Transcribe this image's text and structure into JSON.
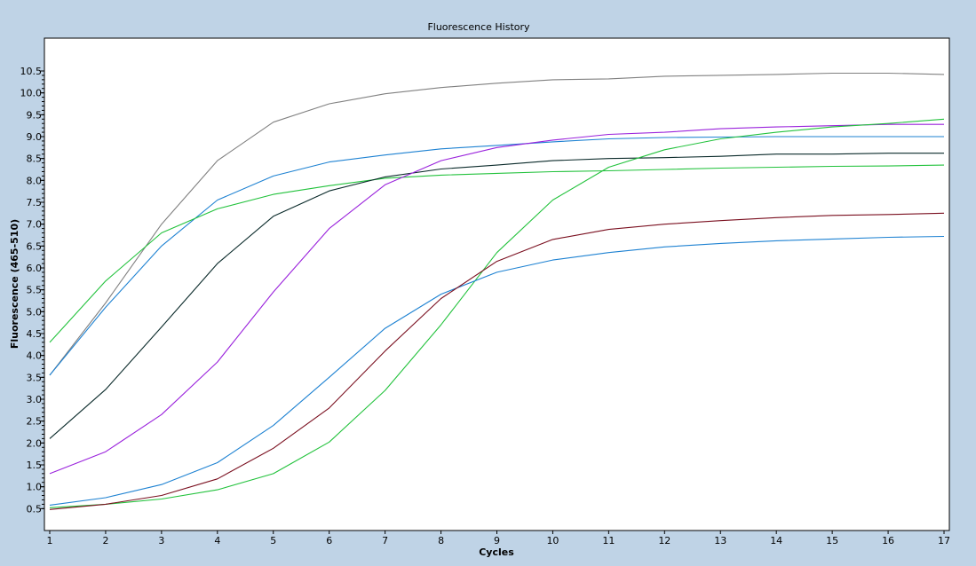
{
  "chart_data": {
    "type": "line",
    "title": "Fluorescence History",
    "xlabel": "Cycles",
    "ylabel": "Fluorescence (465-510)",
    "xlim": [
      1,
      17
    ],
    "ylim": [
      0,
      11.25
    ],
    "x_ticks": [
      1,
      2,
      3,
      4,
      5,
      6,
      7,
      8,
      9,
      10,
      11,
      12,
      13,
      14,
      15,
      16,
      17
    ],
    "y_ticks": [
      "0.5",
      "1.0",
      "1.5",
      "2.0",
      "2.5",
      "3.0",
      "3.5",
      "4.0",
      "4.5",
      "5.0",
      "5.5",
      "6.0",
      "6.5",
      "7.0",
      "7.5",
      "8.0",
      "8.5",
      "9.0",
      "9.5",
      "10.0",
      "10.5"
    ],
    "y_minor_step": 0.1,
    "grid": false,
    "x": [
      1,
      2,
      3,
      4,
      5,
      6,
      7,
      8,
      9,
      10,
      11,
      12,
      13,
      14,
      15,
      16,
      17
    ],
    "series": [
      {
        "color": "#808080",
        "values": [
          3.55,
          5.2,
          7.0,
          8.45,
          9.33,
          9.75,
          9.98,
          10.12,
          10.22,
          10.3,
          10.32,
          10.38,
          10.4,
          10.42,
          10.45,
          10.45,
          10.42
        ]
      },
      {
        "color": "#1e82d2",
        "values": [
          3.55,
          5.1,
          6.5,
          7.55,
          8.1,
          8.42,
          8.58,
          8.72,
          8.8,
          8.88,
          8.95,
          8.98,
          8.99,
          9.0,
          9.0,
          9.0,
          9.0
        ]
      },
      {
        "color": "#22c23c",
        "values": [
          4.3,
          5.7,
          6.8,
          7.35,
          7.68,
          7.88,
          8.05,
          8.12,
          8.16,
          8.2,
          8.22,
          8.25,
          8.28,
          8.3,
          8.32,
          8.33,
          8.35
        ]
      },
      {
        "color": "#0a2a2a",
        "values": [
          2.1,
          3.22,
          4.65,
          6.1,
          7.18,
          7.76,
          8.08,
          8.26,
          8.35,
          8.45,
          8.5,
          8.52,
          8.55,
          8.6,
          8.6,
          8.62,
          8.62
        ]
      },
      {
        "color": "#9a22dc",
        "values": [
          1.3,
          1.8,
          2.65,
          3.85,
          5.45,
          6.9,
          7.9,
          8.45,
          8.75,
          8.92,
          9.05,
          9.1,
          9.18,
          9.22,
          9.25,
          9.28,
          9.28
        ]
      },
      {
        "color": "#22c23c",
        "values": [
          0.52,
          0.6,
          0.72,
          0.93,
          1.3,
          2.02,
          3.2,
          4.7,
          6.35,
          7.55,
          8.3,
          8.7,
          8.95,
          9.1,
          9.22,
          9.3,
          9.4
        ]
      },
      {
        "color": "#1e82d2",
        "values": [
          0.58,
          0.75,
          1.05,
          1.55,
          2.4,
          3.5,
          4.62,
          5.4,
          5.9,
          6.18,
          6.35,
          6.48,
          6.56,
          6.62,
          6.66,
          6.7,
          6.72
        ]
      },
      {
        "color": "#7a0f1f",
        "values": [
          0.48,
          0.6,
          0.8,
          1.18,
          1.88,
          2.8,
          4.1,
          5.3,
          6.15,
          6.65,
          6.88,
          7.0,
          7.08,
          7.15,
          7.2,
          7.22,
          7.25
        ]
      }
    ]
  }
}
